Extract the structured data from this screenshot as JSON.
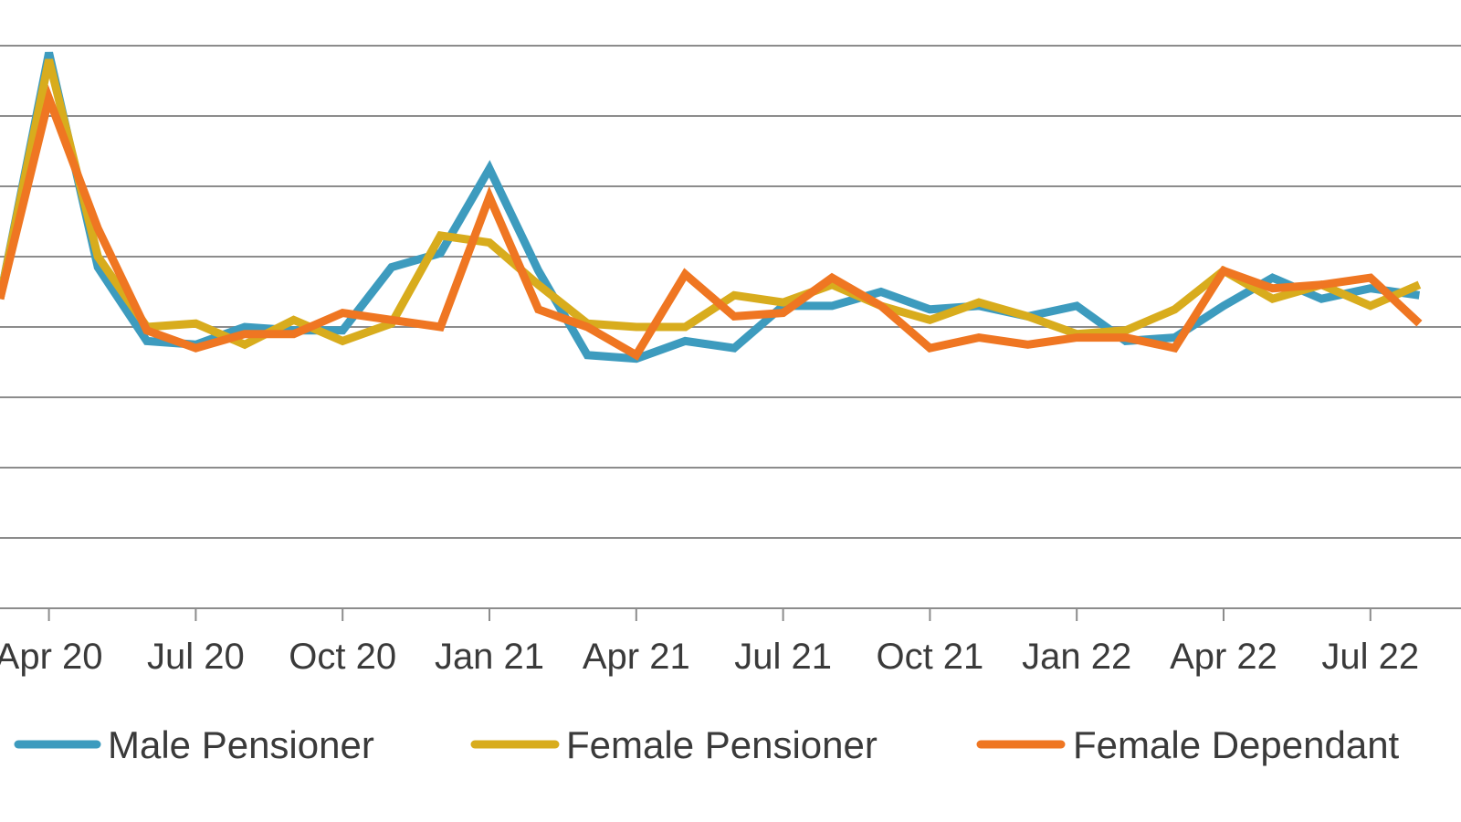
{
  "chart_data": {
    "type": "line",
    "title": "",
    "xlabel": "",
    "ylabel": "",
    "ylim": [
      0,
      8
    ],
    "grid": true,
    "legend_position": "bottom",
    "x": [
      "Mar 20",
      "Apr 20",
      "May 20",
      "Jun 20",
      "Jul 20",
      "Aug 20",
      "Sep 20",
      "Oct 20",
      "Nov 20",
      "Dec 20",
      "Jan 21",
      "Feb 21",
      "Mar 21",
      "Apr 21",
      "May 21",
      "Jun 21",
      "Jul 21",
      "Aug 21",
      "Sep 21",
      "Oct 21",
      "Nov 21",
      "Dec 21",
      "Jan 22",
      "Feb 22",
      "Mar 22",
      "Apr 22",
      "May 22",
      "Jun 22",
      "Jul 22",
      "Aug 22"
    ],
    "tick_labels": [
      "Apr 20",
      "Jul 20",
      "Oct 20",
      "Jan 21",
      "Apr 21",
      "Jul 21",
      "Oct 21",
      "Jan 22",
      "Apr 22",
      "Jul 22"
    ],
    "series": [
      {
        "name": "Male Pensioner",
        "color": "#3d9bbe",
        "values": [
          4.4,
          7.9,
          4.85,
          3.8,
          3.75,
          4.0,
          3.95,
          3.95,
          4.85,
          5.05,
          6.25,
          4.8,
          3.6,
          3.55,
          3.8,
          3.7,
          4.3,
          4.3,
          4.5,
          4.25,
          4.3,
          4.15,
          4.3,
          3.8,
          3.85,
          4.3,
          4.7,
          4.4,
          4.55,
          4.45
        ]
      },
      {
        "name": "Female Pensioner",
        "color": "#d8ac1d",
        "values": [
          4.4,
          7.8,
          5.0,
          4.0,
          4.05,
          3.75,
          4.1,
          3.8,
          4.05,
          5.3,
          5.2,
          4.6,
          4.05,
          4.0,
          4.0,
          4.45,
          4.35,
          4.6,
          4.3,
          4.1,
          4.35,
          4.15,
          3.9,
          3.95,
          4.25,
          4.8,
          4.4,
          4.6,
          4.3,
          4.6
        ]
      },
      {
        "name": "Female Dependant",
        "color": "#ef7622",
        "values": [
          4.4,
          7.25,
          5.4,
          3.95,
          3.7,
          3.9,
          3.9,
          4.2,
          4.1,
          4.0,
          5.85,
          4.25,
          4.0,
          3.6,
          4.75,
          4.15,
          4.2,
          4.7,
          4.3,
          3.7,
          3.85,
          3.75,
          3.85,
          3.85,
          3.7,
          4.8,
          4.55,
          4.6,
          4.7,
          4.05
        ]
      }
    ]
  }
}
